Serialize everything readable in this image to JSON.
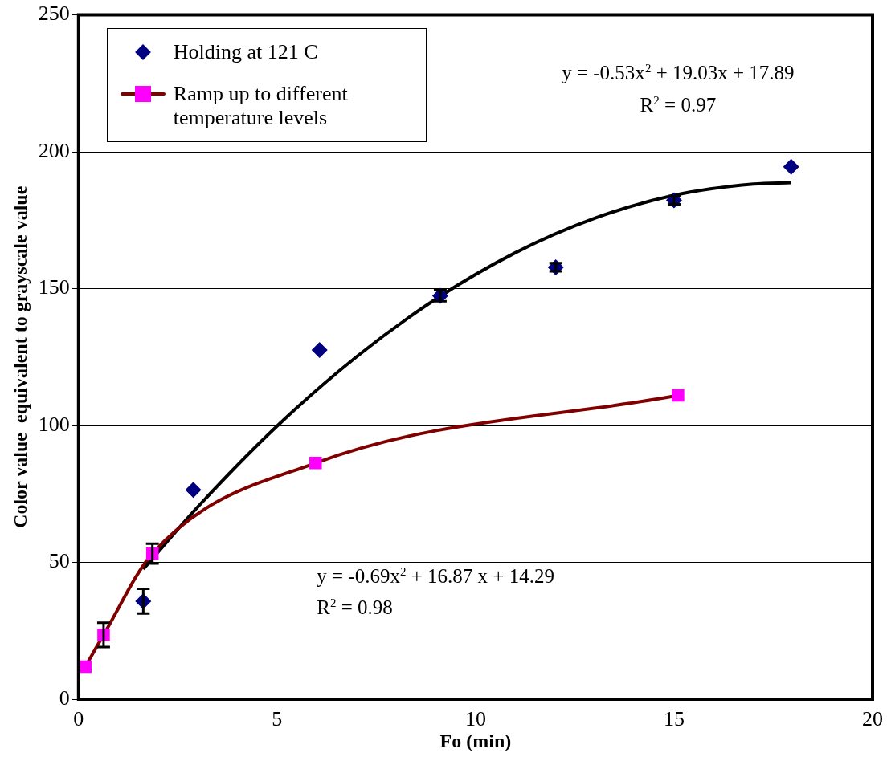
{
  "chart_data": {
    "type": "scatter",
    "xlabel": "Fo (min)",
    "ylabel": "Color value  equivalent to grayscale value",
    "xlim": [
      0,
      20
    ],
    "xticks": [
      0,
      5,
      10,
      15,
      20
    ],
    "ylim": [
      0,
      250
    ],
    "yticks": [
      0,
      50,
      100,
      150,
      200,
      250
    ],
    "grid": "y",
    "legend": "top left",
    "series": [
      {
        "name": "Holding at 121 C",
        "marker": "diamond",
        "color": "#000080",
        "x": [
          1.63,
          2.89,
          6.07,
          9.11,
          12.02,
          15.0,
          17.95
        ],
        "values": [
          35.8,
          76.5,
          127.6,
          147.4,
          157.8,
          182.3,
          194.5
        ],
        "errors": [
          4.5,
          null,
          null,
          2,
          1.5,
          1.5,
          null
        ]
      },
      {
        "name": "Ramp up to different temperature levels",
        "type": "line",
        "marker": "square",
        "color": "#800000",
        "colors": [
          "#ff00ff",
          "#ff00ff",
          "#ff00ff",
          "#ff00ff",
          "#ff00ff"
        ],
        "x": [
          0.17,
          0.63,
          1.86,
          5.97,
          15.1
        ],
        "values": [
          11.9,
          23.5,
          53.2,
          86.3,
          111.0
        ],
        "errors": [
          null,
          4.4,
          3.6,
          null,
          null
        ]
      },
      {
        "type": "line",
        "marker": "none",
        "color": "#000000",
        "x": [
          1.63,
          3,
          5,
          7,
          9,
          11,
          13,
          15,
          17,
          17.95
        ],
        "values": [
          47.5,
          70.2,
          99.8,
          125.1,
          146.2,
          163.1,
          175.7,
          184.1,
          188.2,
          188.7
        ]
      }
    ],
    "annotations": [
      "y = -0.53x$^{2}$ + 19.03x + 17.89",
      "R$^{2}$ = 0.97",
      "y = -0.69x$^{2}$ + 16.87 x + 14.29",
      "R$^{2}$ = 0.98"
    ]
  }
}
